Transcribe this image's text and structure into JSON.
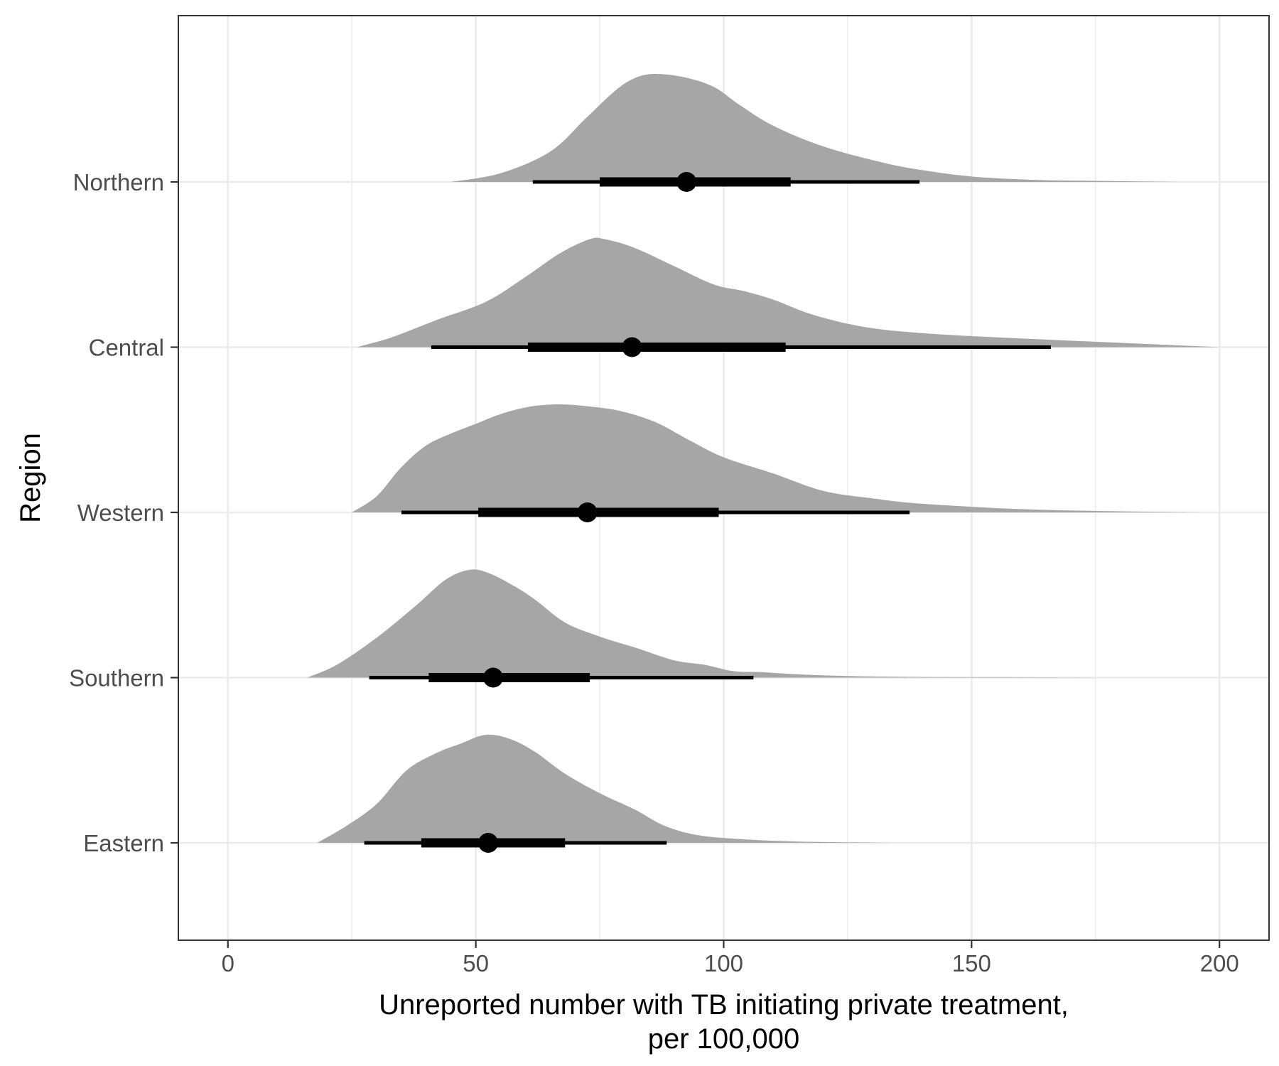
{
  "chart_data": {
    "type": "density",
    "xlabel_lines": [
      "Unreported number with TB initiating private treatment,",
      "per 100,000"
    ],
    "ylabel": "Region",
    "xlim": [
      -10,
      210
    ],
    "x_ticks": [
      0,
      50,
      100,
      150,
      200
    ],
    "x_tick_labels": [
      "0",
      "50",
      "100",
      "150",
      "200"
    ],
    "categories": [
      "Northern",
      "Central",
      "Western",
      "Southern",
      "Eastern"
    ],
    "grid": true,
    "colors": {
      "density_fill": "#a6a6a6",
      "interval": "#000000",
      "grid": "#ebebeb",
      "panel_border": "#333333"
    },
    "series": [
      {
        "category": "Northern",
        "density": {
          "x": [
            45,
            55,
            65,
            72,
            78,
            82,
            86,
            92,
            98,
            103,
            110,
            120,
            132,
            140,
            150,
            162,
            175,
            192
          ],
          "y": [
            0,
            0.08,
            0.28,
            0.58,
            0.84,
            0.96,
            1.0,
            0.97,
            0.88,
            0.72,
            0.52,
            0.33,
            0.18,
            0.11,
            0.05,
            0.02,
            0.01,
            0
          ]
        },
        "point": 92.5,
        "interval_66": [
          75,
          113.5
        ],
        "interval_95": [
          61.5,
          139.5
        ]
      },
      {
        "category": "Central",
        "density": {
          "x": [
            26,
            33,
            42,
            52,
            60,
            67,
            73,
            76,
            82,
            90,
            98,
            104,
            110,
            118,
            128,
            140,
            160,
            180,
            200
          ],
          "y": [
            0,
            0.09,
            0.25,
            0.42,
            0.65,
            0.87,
            1.0,
            1.0,
            0.92,
            0.75,
            0.58,
            0.52,
            0.44,
            0.3,
            0.19,
            0.13,
            0.08,
            0.04,
            0
          ]
        },
        "point": 81.5,
        "interval_66": [
          60.5,
          112.5
        ],
        "interval_95": [
          41,
          166
        ]
      },
      {
        "category": "Western",
        "density": {
          "x": [
            25,
            30,
            35,
            40,
            45,
            50,
            55,
            61,
            67,
            73,
            79,
            86,
            93,
            100,
            110,
            120,
            130,
            140,
            160,
            180,
            197
          ],
          "y": [
            0,
            0.15,
            0.42,
            0.62,
            0.73,
            0.82,
            0.91,
            0.98,
            1.0,
            0.98,
            0.94,
            0.84,
            0.67,
            0.51,
            0.36,
            0.2,
            0.13,
            0.08,
            0.03,
            0.01,
            0
          ]
        },
        "point": 72.5,
        "interval_66": [
          50.5,
          99
        ],
        "interval_95": [
          35,
          137.5
        ]
      },
      {
        "category": "Southern",
        "density": {
          "x": [
            16,
            22,
            30,
            38,
            44,
            49,
            53,
            58,
            62,
            68,
            75,
            82,
            90,
            96,
            102,
            108,
            115,
            125,
            140,
            160,
            178
          ],
          "y": [
            0,
            0.12,
            0.37,
            0.67,
            0.91,
            1.0,
            0.96,
            0.84,
            0.72,
            0.51,
            0.38,
            0.28,
            0.16,
            0.12,
            0.06,
            0.05,
            0.03,
            0.015,
            0.006,
            0.003,
            0
          ]
        },
        "point": 53.5,
        "interval_66": [
          40.5,
          73
        ],
        "interval_95": [
          28.5,
          106
        ]
      },
      {
        "category": "Eastern",
        "density": {
          "x": [
            18,
            24,
            30,
            36,
            42,
            47,
            52,
            57,
            62,
            68,
            75,
            82,
            88,
            95,
            105,
            115,
            125,
            135
          ],
          "y": [
            0,
            0.16,
            0.36,
            0.67,
            0.83,
            0.92,
            1.0,
            0.96,
            0.84,
            0.64,
            0.46,
            0.31,
            0.16,
            0.07,
            0.03,
            0.012,
            0.005,
            0
          ]
        },
        "point": 52.5,
        "interval_66": [
          39,
          68
        ],
        "interval_95": [
          27.5,
          88.5
        ]
      }
    ]
  }
}
